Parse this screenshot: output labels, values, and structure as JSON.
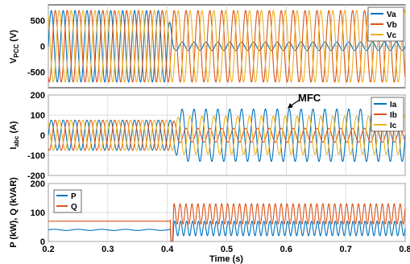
{
  "chart_data": [
    {
      "type": "line",
      "ylabel_main": "V",
      "ylabel_sub": "PCC",
      "ylabel_unit": " (V)",
      "xlim": [
        0.2,
        0.8
      ],
      "ylim": [
        -800,
        800
      ],
      "yticks": [
        500,
        0,
        -500
      ],
      "ytick_labels": [
        "500",
        "0",
        "-500"
      ],
      "xticks": [
        0.2,
        0.3,
        0.4,
        0.5,
        0.6,
        0.7,
        0.8
      ],
      "grid": true,
      "legend_position": "top-right",
      "frequency_hz": 50,
      "series": [
        {
          "name": "Va",
          "color": "#0072bd",
          "phase_deg": 0,
          "amp_before": 690,
          "amp_after": 80
        },
        {
          "name": "Vb",
          "color": "#d95319",
          "phase_deg": -120,
          "amp_before": 690,
          "amp_after": 690
        },
        {
          "name": "Vc",
          "color": "#edb120",
          "phase_deg": 120,
          "amp_before": 690,
          "amp_after": 690
        }
      ],
      "change_at": 0.4
    },
    {
      "type": "line",
      "ylabel_main": "I",
      "ylabel_sub": "abc",
      "ylabel_unit": " (A)",
      "xlim": [
        0.2,
        0.8
      ],
      "ylim": [
        -200,
        200
      ],
      "yticks": [
        200,
        100,
        0,
        -100,
        -200
      ],
      "ytick_labels": [
        "200",
        "100",
        "0",
        "-100",
        "-200"
      ],
      "xticks": [
        0.2,
        0.3,
        0.4,
        0.5,
        0.6,
        0.7,
        0.8
      ],
      "grid": true,
      "legend_position": "top-right",
      "frequency_hz": 50,
      "series": [
        {
          "name": "Ia",
          "color": "#0072bd",
          "phase_deg": 0,
          "amp_before": 75,
          "amp_after": 130
        },
        {
          "name": "Ib",
          "color": "#d95319",
          "phase_deg": -120,
          "amp_before": 75,
          "amp_after": 35
        },
        {
          "name": "Ic",
          "color": "#edb120",
          "phase_deg": 120,
          "amp_before": 75,
          "amp_after": 95
        }
      ],
      "change_at": 0.41,
      "annotation": {
        "text": "MFC",
        "x": 0.56,
        "y": 130
      }
    },
    {
      "type": "line",
      "ylabel": "P (kW), Q (kVAR)",
      "xlabel": "Time (s)",
      "xlim": [
        0.2,
        0.8
      ],
      "ylim": [
        0,
        200
      ],
      "yticks": [
        200,
        100,
        0
      ],
      "ytick_labels": [
        "200",
        "100",
        "0"
      ],
      "xticks": [
        0.2,
        0.3,
        0.4,
        0.5,
        0.6,
        0.7,
        0.8
      ],
      "xtick_labels": [
        "0.2",
        "0.3",
        "0.4",
        "0.5",
        "0.6",
        "0.7",
        "0.8"
      ],
      "grid": true,
      "legend_position": "top-left",
      "series": [
        {
          "name": "P",
          "color": "#0072bd",
          "before": 40,
          "after_mean": 45,
          "after_ripple": 25,
          "ripple_hz": 100
        },
        {
          "name": "Q",
          "color": "#d95319",
          "before": 70,
          "after_mean": 95,
          "after_ripple": 35,
          "ripple_hz": 100
        }
      ],
      "change_at": 0.405
    }
  ]
}
